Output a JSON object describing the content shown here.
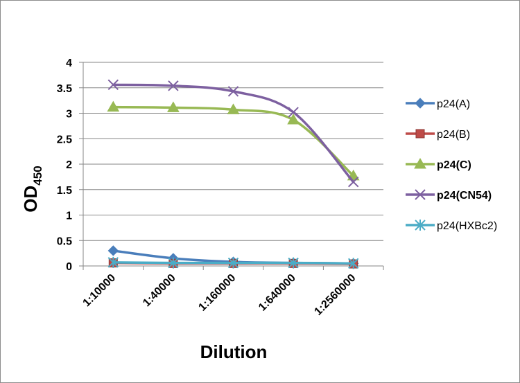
{
  "chart_data": {
    "type": "line",
    "title": "",
    "xlabel": "Dilution",
    "ylabel_main": "OD",
    "ylabel_sub": "450",
    "categories": [
      "1:10000",
      "1:40000",
      "1:160000",
      "1:640000",
      "1:2560000"
    ],
    "ylim": [
      0,
      4
    ],
    "yticks": [
      "0",
      "0.5",
      "1",
      "1.5",
      "2",
      "2.5",
      "3",
      "3.5",
      "4"
    ],
    "grid": true,
    "legend_position": "right",
    "series": [
      {
        "name": "p24(A)",
        "color": "#4a7ebb",
        "marker": "diamond",
        "bold": false,
        "values": [
          0.3,
          0.15,
          0.08,
          0.06,
          0.05
        ]
      },
      {
        "name": "p24(B)",
        "color": "#be4b48",
        "marker": "square",
        "bold": false,
        "values": [
          0.06,
          0.05,
          0.05,
          0.05,
          0.04
        ]
      },
      {
        "name": "p24(C)",
        "color": "#98b954",
        "marker": "triangle",
        "bold": true,
        "values": [
          3.12,
          3.11,
          3.07,
          2.87,
          1.77
        ]
      },
      {
        "name": "p24(CN54)",
        "color": "#7d60a0",
        "marker": "x",
        "bold": true,
        "values": [
          3.56,
          3.54,
          3.43,
          3.02,
          1.65
        ]
      },
      {
        "name": "p24(HXBc2)",
        "color": "#4bacc6",
        "marker": "star",
        "bold": false,
        "values": [
          0.07,
          0.06,
          0.06,
          0.06,
          0.05
        ]
      }
    ]
  }
}
